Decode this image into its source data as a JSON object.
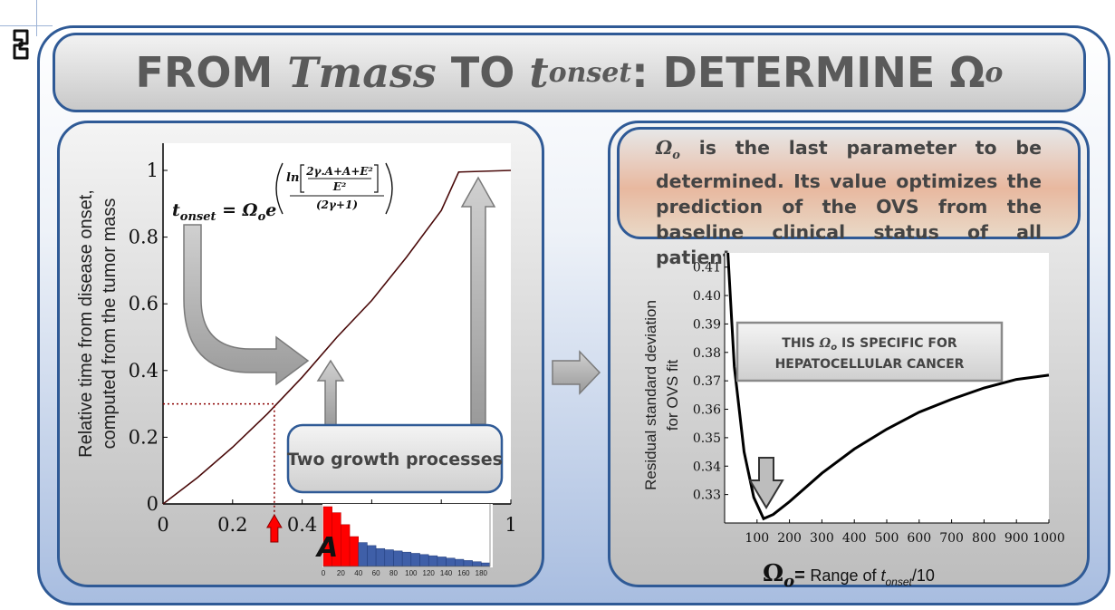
{
  "title": {
    "prefix": "FROM ",
    "tmass": "Tmass",
    "middle": " TO ",
    "t": "t",
    "onset_sub": "onset",
    "suffix": ": DETERMINE ",
    "omega": "Ω",
    "omega_sub": "o"
  },
  "note": {
    "symbol": "Ω",
    "symbol_sub": "o",
    "text": " is the last parameter to be determined. Its value optimizes the prediction of the OVS from the baseline clinical status of all patients"
  },
  "left_chart": {
    "ylabel_line1": "Relative time from disease onset,",
    "ylabel_line2": "computed from the tumor mass",
    "xticks": [
      "0",
      "0.2",
      "0.4",
      "0.6",
      "0.8",
      "1"
    ],
    "yticks": [
      "0",
      "0.2",
      "0.4",
      "0.6",
      "0.8",
      "1"
    ],
    "formula_lhs_t": "t",
    "formula_lhs_sub": "onset",
    "formula_eq": " = Ω",
    "formula_eq_sub": "o",
    "formula_e": "e",
    "formula_ln": "ln",
    "formula_num": "2γ.A+A+E²",
    "formula_den": "E²",
    "formula_outer_den": "(2γ+1)",
    "growth_label": "Two growth processes",
    "hist_letter": "A",
    "hist_ticks": [
      "0",
      "20",
      "40",
      "60",
      "80",
      "100",
      "120",
      "140",
      "160",
      "180"
    ]
  },
  "right_chart": {
    "ylabel_line1": "Residual standard deviation",
    "ylabel_line2": "for OVS fit",
    "yticks": [
      "0.33",
      "0.34",
      "0.35",
      "0.36",
      "0.37",
      "0.38",
      "0.39",
      "0.40",
      "0.41"
    ],
    "xticks": [
      "100",
      "200",
      "300",
      "400",
      "500",
      "600",
      "700",
      "800",
      "900",
      "1000"
    ],
    "specific_line1_pre": "THIS ",
    "specific_line1_sym": "Ω",
    "specific_line1_sub": "o",
    "specific_line1_post": " IS SPECIFIC FOR",
    "specific_line2": "HEPATOCELLULAR CANCER",
    "xlabel_sym": "Ω",
    "xlabel_sub": "o",
    "xlabel_eq": "= ",
    "xlabel_text": "Range of  ",
    "xlabel_t": "t",
    "xlabel_t_sub": "onset",
    "xlabel_suffix": "/10"
  },
  "chart_data": [
    {
      "type": "line",
      "x": [
        0,
        0.1,
        0.2,
        0.3,
        0.4,
        0.5,
        0.6,
        0.7,
        0.8,
        0.85,
        1.0
      ],
      "y": [
        0,
        0.08,
        0.17,
        0.27,
        0.38,
        0.5,
        0.61,
        0.74,
        0.88,
        0.995,
        1.0
      ],
      "xlim": [
        0,
        1
      ],
      "ylim": [
        0,
        1
      ],
      "xlabel": "",
      "ylabel": "Relative time from disease onset, computed from the tumor mass",
      "annotation": {
        "x": 0.32,
        "y": 0.3
      }
    },
    {
      "type": "bar",
      "categories": [
        "0",
        "10",
        "20",
        "30",
        "40",
        "50",
        "60",
        "70",
        "80",
        "90",
        "100",
        "110",
        "120",
        "130",
        "140",
        "150",
        "160",
        "170",
        "180"
      ],
      "values": [
        10,
        9,
        7,
        5,
        4,
        3.5,
        3,
        2.8,
        2.6,
        2.4,
        2.2,
        2,
        1.8,
        1.6,
        1.4,
        1.2,
        1,
        0.8,
        0.6
      ],
      "highlight_to": 35,
      "highlight_color": "#ff0000",
      "bar_color": "#3f5fa8"
    },
    {
      "type": "line",
      "x": [
        10,
        30,
        60,
        90,
        120,
        150,
        200,
        300,
        400,
        500,
        600,
        700,
        800,
        900,
        1000
      ],
      "y": [
        0.415,
        0.375,
        0.345,
        0.329,
        0.3215,
        0.323,
        0.3275,
        0.3375,
        0.346,
        0.353,
        0.359,
        0.3635,
        0.3675,
        0.3705,
        0.372
      ],
      "xlim": [
        0,
        1000
      ],
      "ylim": [
        0.32,
        0.415
      ],
      "xlabel": "Ω_o = Range of t_onset/10",
      "ylabel": "Residual standard deviation for OVS fit"
    }
  ]
}
